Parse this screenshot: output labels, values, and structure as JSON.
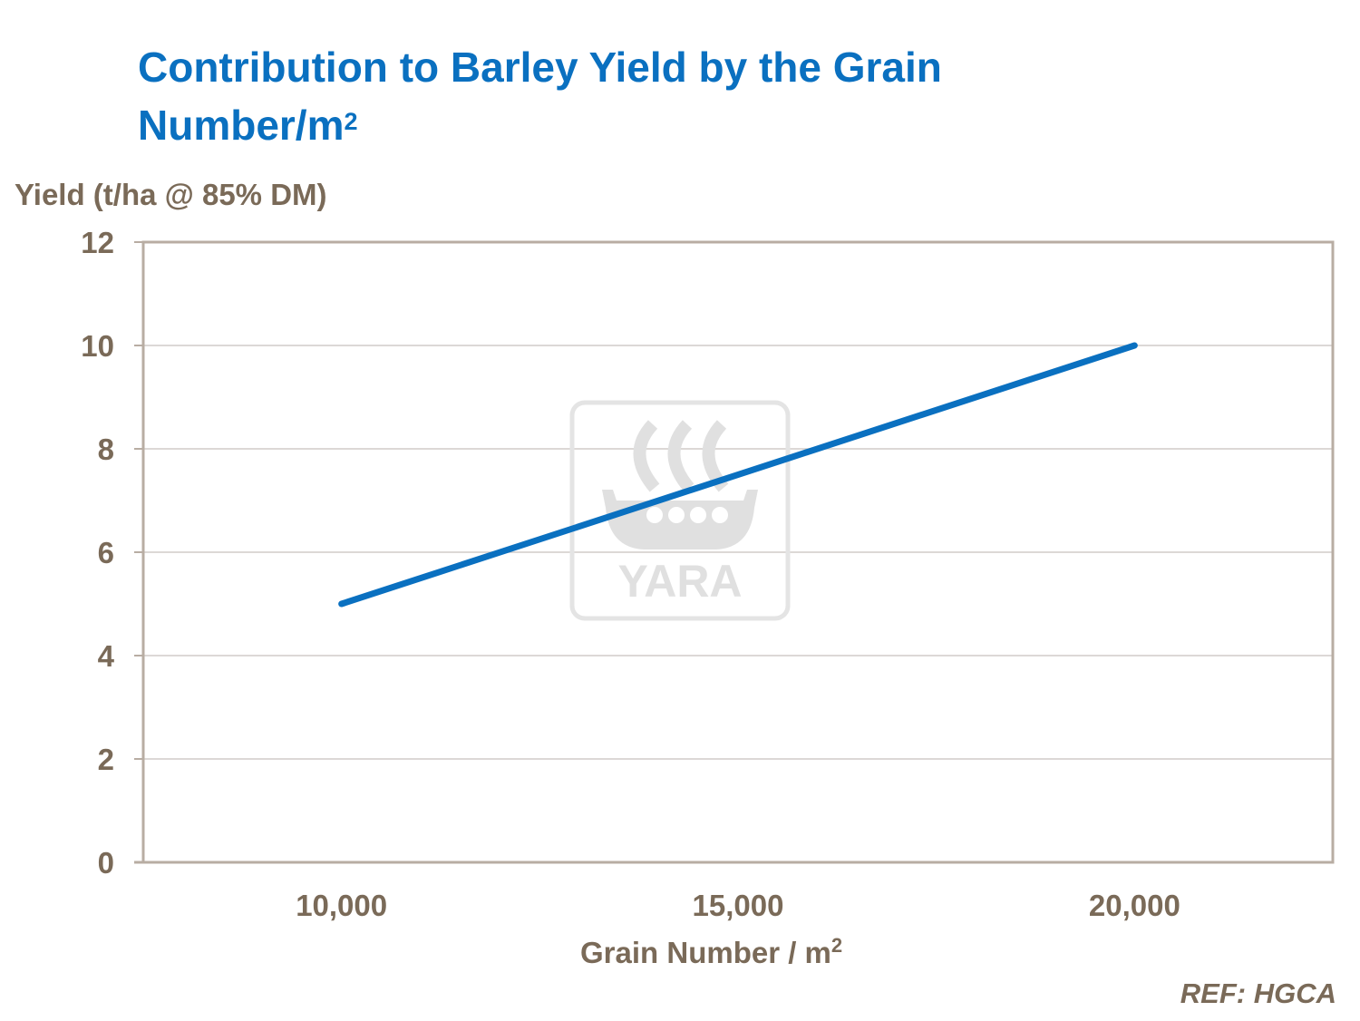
{
  "title": {
    "main": "Contribution to Barley Yield by the Grain Number/m",
    "sup": "2"
  },
  "watermark": {
    "text": "YARA",
    "icon": "yara-viking-ship-logo"
  },
  "reference": "REF: HGCA",
  "colors": {
    "title": "#0a70c0",
    "line": "#0a70c0",
    "axis_text": "#7a6a58",
    "frame": "#b8ada3",
    "grid": "#d0ccc8"
  },
  "chart_data": {
    "type": "line",
    "title": "Contribution to Barley Yield by the Grain Number/m2",
    "xlabel": {
      "main": "Grain Number / m",
      "sup": "2"
    },
    "ylabel": "Yield (t/ha @ 85% DM)",
    "x": [
      10000,
      20000
    ],
    "series": [
      {
        "values": [
          5,
          10
        ]
      }
    ],
    "xlim": [
      7500,
      22500
    ],
    "ylim": [
      0,
      12
    ],
    "xticks": [
      10000,
      15000,
      20000
    ],
    "xtick_labels": [
      "10,000",
      "15,000",
      "20,000"
    ],
    "yticks": [
      0,
      2,
      4,
      6,
      8,
      10,
      12
    ],
    "ytick_labels": [
      "0",
      "2",
      "4",
      "6",
      "8",
      "10",
      "12"
    ],
    "grid": "horizontal",
    "legend": "none"
  }
}
